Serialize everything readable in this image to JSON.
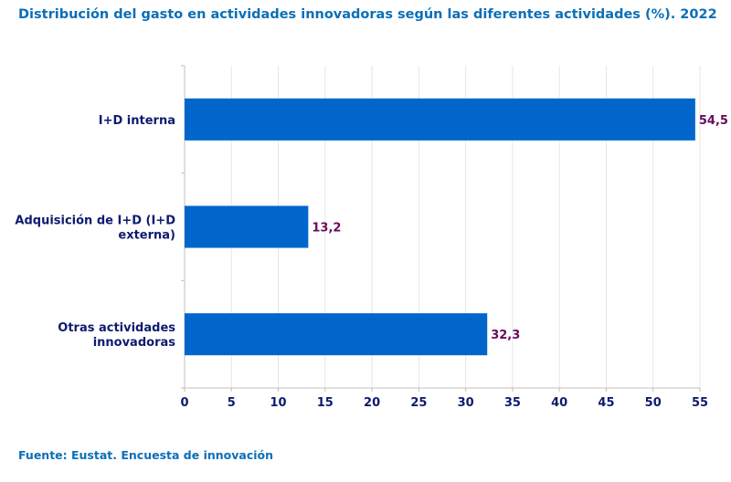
{
  "title": "Distribución del gasto en actividades innovadoras según las diferentes actividades (%). 2022",
  "source": "Fuente: Eustat. Encuesta de innovación",
  "colors": {
    "bar": "#0066cc",
    "title": "#0a6fb8",
    "axis_text": "#0d1b6e",
    "value_text": "#6a0a5e"
  },
  "chart_data": {
    "type": "bar",
    "orientation": "horizontal",
    "title": "Distribución del gasto en actividades innovadoras según las diferentes actividades (%). 2022",
    "categories": [
      [
        "I+D interna"
      ],
      [
        "Adquisición de I+D (I+D",
        "externa)"
      ],
      [
        "Otras actividades",
        "innovadoras"
      ]
    ],
    "values": [
      54.5,
      13.2,
      32.3
    ],
    "value_labels": [
      "54,5",
      "13,2",
      "32,3"
    ],
    "xlim": [
      0,
      55
    ],
    "xticks": [
      0,
      5,
      10,
      15,
      20,
      25,
      30,
      35,
      40,
      45,
      50,
      55
    ],
    "grid": true
  }
}
